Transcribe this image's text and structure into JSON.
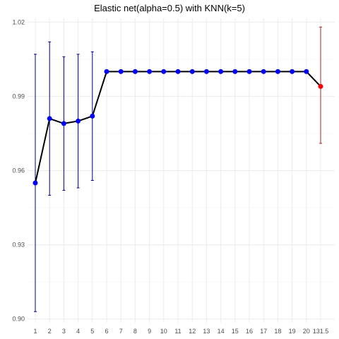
{
  "chart_data": {
    "type": "line",
    "title": "Elastic net(alpha=0.5) with KNN(k=5)",
    "xlabel": "",
    "ylabel": "",
    "categories": [
      "1",
      "2",
      "3",
      "4",
      "5",
      "6",
      "7",
      "8",
      "9",
      "10",
      "11",
      "12",
      "13",
      "14",
      "15",
      "16",
      "17",
      "18",
      "19",
      "20",
      "131.5"
    ],
    "series": [
      {
        "values": [
          0.955,
          0.981,
          0.979,
          0.98,
          0.982,
          1.0,
          1.0,
          1.0,
          1.0,
          1.0,
          1.0,
          1.0,
          1.0,
          1.0,
          1.0,
          1.0,
          1.0,
          1.0,
          1.0,
          1.0,
          0.994
        ],
        "error_upper": [
          1.007,
          1.012,
          1.006,
          1.007,
          1.008,
          1.0,
          1.0,
          1.0,
          1.0,
          1.0,
          1.0,
          1.0,
          1.0,
          1.0,
          1.0,
          1.0,
          1.0,
          1.0,
          1.0,
          1.0,
          1.018
        ],
        "error_lower": [
          0.903,
          0.95,
          0.952,
          0.953,
          0.956,
          1.0,
          1.0,
          1.0,
          1.0,
          1.0,
          1.0,
          1.0,
          1.0,
          1.0,
          1.0,
          1.0,
          1.0,
          1.0,
          1.0,
          1.0,
          0.971
        ],
        "point_colors": [
          "#0000ff",
          "#0000ff",
          "#0000ff",
          "#0000ff",
          "#0000ff",
          "#0000ff",
          "#0000ff",
          "#0000ff",
          "#0000ff",
          "#0000ff",
          "#0000ff",
          "#0000ff",
          "#0000ff",
          "#0000ff",
          "#0000ff",
          "#0000ff",
          "#0000ff",
          "#0000ff",
          "#0000ff",
          "#0000ff",
          "#ff0000"
        ],
        "errorbar_colors": [
          "#00008b",
          "#00008b",
          "#00008b",
          "#00008b",
          "#00008b",
          "#00008b",
          "#00008b",
          "#00008b",
          "#00008b",
          "#00008b",
          "#00008b",
          "#00008b",
          "#00008b",
          "#00008b",
          "#00008b",
          "#00008b",
          "#00008b",
          "#00008b",
          "#00008b",
          "#00008b",
          "#b22222"
        ],
        "line_color": "#000000"
      }
    ],
    "yticks": [
      0.9,
      0.93,
      0.96,
      0.99,
      1.02
    ],
    "ytick_labels": [
      "0.90",
      "0.93",
      "0.96",
      "0.99",
      "1.02"
    ],
    "ylim": [
      0.8985,
      1.0215
    ],
    "grid": true,
    "legend": "none",
    "colors": {
      "grid_major": "#ebebeb",
      "grid_minor": "#f5f5f5",
      "tick_text": "#4d4d4d"
    }
  }
}
